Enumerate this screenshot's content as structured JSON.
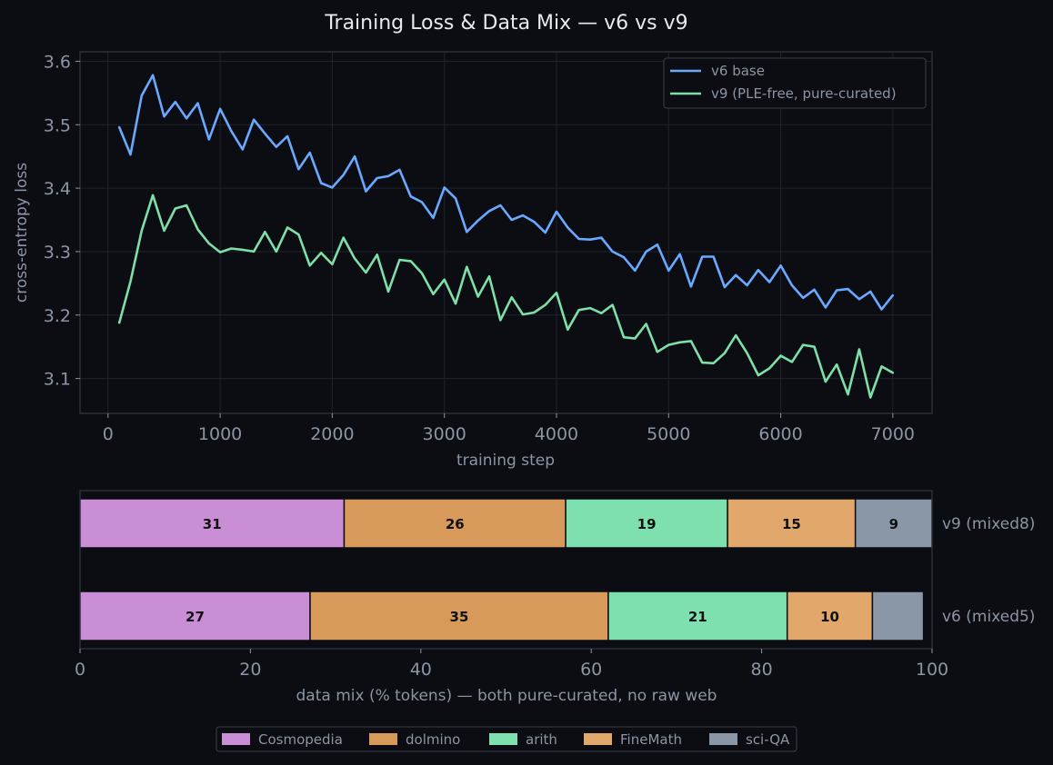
{
  "figure_title": "Training Loss & Data Mix — v6 vs v9",
  "colors": {
    "background": "#0b0d12",
    "axis": "#3a3f4a",
    "grid": "#1f232b",
    "tick_text": "#8b95a5",
    "title_text": "#e6e9ef",
    "v6": "#6aa9ff",
    "v9": "#7ee0a8",
    "Cosmopedia": "#c98ed6",
    "dolmino": "#d89a5a",
    "arith": "#7ee0ae",
    "FineMath": "#e2a76a",
    "sci-QA": "#8a97a6"
  },
  "chart_data": [
    {
      "type": "line",
      "xlabel": "training step",
      "ylabel": "cross-entropy loss",
      "xlim": [
        -250,
        7350
      ],
      "ylim": [
        3.045,
        3.615
      ],
      "xticks": [
        0,
        1000,
        2000,
        3000,
        4000,
        5000,
        6000,
        7000
      ],
      "yticks": [
        3.1,
        3.2,
        3.3,
        3.4,
        3.5,
        3.6
      ],
      "grid": true,
      "legend_position": "top-right",
      "x": [
        100,
        200,
        300,
        400,
        500,
        600,
        700,
        800,
        900,
        1000,
        1100,
        1200,
        1300,
        1400,
        1500,
        1600,
        1700,
        1800,
        1900,
        2000,
        2100,
        2200,
        2300,
        2400,
        2500,
        2600,
        2700,
        2800,
        2900,
        3000,
        3100,
        3200,
        3300,
        3400,
        3500,
        3600,
        3700,
        3800,
        3900,
        4000,
        4100,
        4200,
        4300,
        4400,
        4500,
        4600,
        4700,
        4800,
        4900,
        5000,
        5100,
        5200,
        5300,
        5400,
        5500,
        5600,
        5700,
        5800,
        5900,
        6000,
        6100,
        6200,
        6300,
        6400,
        6500,
        6600,
        6700,
        6800,
        6900,
        7000
      ],
      "series": [
        {
          "name": "v6 base",
          "color": "#6aa9ff",
          "values": [
            3.496,
            3.453,
            3.546,
            3.578,
            3.513,
            3.536,
            3.51,
            3.534,
            3.477,
            3.525,
            3.49,
            3.461,
            3.508,
            3.486,
            3.465,
            3.482,
            3.43,
            3.456,
            3.408,
            3.401,
            3.421,
            3.45,
            3.395,
            3.416,
            3.419,
            3.429,
            3.387,
            3.378,
            3.353,
            3.401,
            3.384,
            3.331,
            3.349,
            3.364,
            3.373,
            3.35,
            3.357,
            3.347,
            3.33,
            3.363,
            3.338,
            3.32,
            3.319,
            3.322,
            3.3,
            3.291,
            3.27,
            3.3,
            3.311,
            3.27,
            3.296,
            3.245,
            3.292,
            3.292,
            3.244,
            3.263,
            3.247,
            3.271,
            3.252,
            3.278,
            3.247,
            3.227,
            3.24,
            3.212,
            3.239,
            3.241,
            3.225,
            3.237,
            3.209,
            3.231
          ]
        },
        {
          "name": "v9 (PLE-free, pure-curated)",
          "color": "#7ee0a8",
          "values": [
            3.188,
            3.253,
            3.333,
            3.389,
            3.333,
            3.368,
            3.373,
            3.335,
            3.313,
            3.299,
            3.305,
            3.303,
            3.3,
            3.331,
            3.3,
            3.338,
            3.327,
            3.278,
            3.298,
            3.28,
            3.322,
            3.289,
            3.267,
            3.295,
            3.237,
            3.287,
            3.285,
            3.266,
            3.233,
            3.256,
            3.218,
            3.276,
            3.229,
            3.261,
            3.192,
            3.228,
            3.201,
            3.204,
            3.216,
            3.235,
            3.177,
            3.208,
            3.211,
            3.203,
            3.216,
            3.165,
            3.163,
            3.186,
            3.142,
            3.153,
            3.157,
            3.159,
            3.125,
            3.124,
            3.14,
            3.168,
            3.14,
            3.105,
            3.116,
            3.136,
            3.126,
            3.153,
            3.15,
            3.095,
            3.122,
            3.075,
            3.146,
            3.07,
            3.119,
            3.109
          ]
        }
      ]
    },
    {
      "type": "bar",
      "orientation": "horizontal",
      "stacked": true,
      "xlabel": "data mix (% tokens) — both pure-curated, no raw web",
      "xlim": [
        0,
        100
      ],
      "xticks": [
        0,
        20,
        40,
        60,
        80,
        100
      ],
      "categories": [
        "v9 (mixed8)",
        "v6 (mixed5)"
      ],
      "legend_position": "bottom-center",
      "series": [
        {
          "name": "Cosmopedia",
          "values": [
            31,
            27
          ],
          "labels": [
            "31",
            "27"
          ]
        },
        {
          "name": "dolmino",
          "values": [
            26,
            35
          ],
          "labels": [
            "26",
            "35"
          ]
        },
        {
          "name": "arith",
          "values": [
            19,
            21
          ],
          "labels": [
            "19",
            "21"
          ]
        },
        {
          "name": "FineMath",
          "values": [
            15,
            10
          ],
          "labels": [
            "15",
            "10"
          ]
        },
        {
          "name": "sci-QA",
          "values": [
            9,
            6
          ],
          "labels": [
            "9",
            ""
          ]
        }
      ]
    }
  ]
}
